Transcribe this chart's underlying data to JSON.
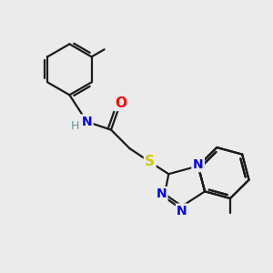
{
  "background_color": "#ebebeb",
  "bond_color": "#1a1a1a",
  "figsize": [
    3.0,
    3.0
  ],
  "dpi": 100,
  "atoms": {
    "N_blue": "#0000ee",
    "O_red": "#ff0000",
    "S_yellow": "#cccc00",
    "H_teal": "#669999",
    "C_black": "#1a1a1a"
  },
  "xlim": [
    0,
    10
  ],
  "ylim": [
    0,
    10
  ]
}
